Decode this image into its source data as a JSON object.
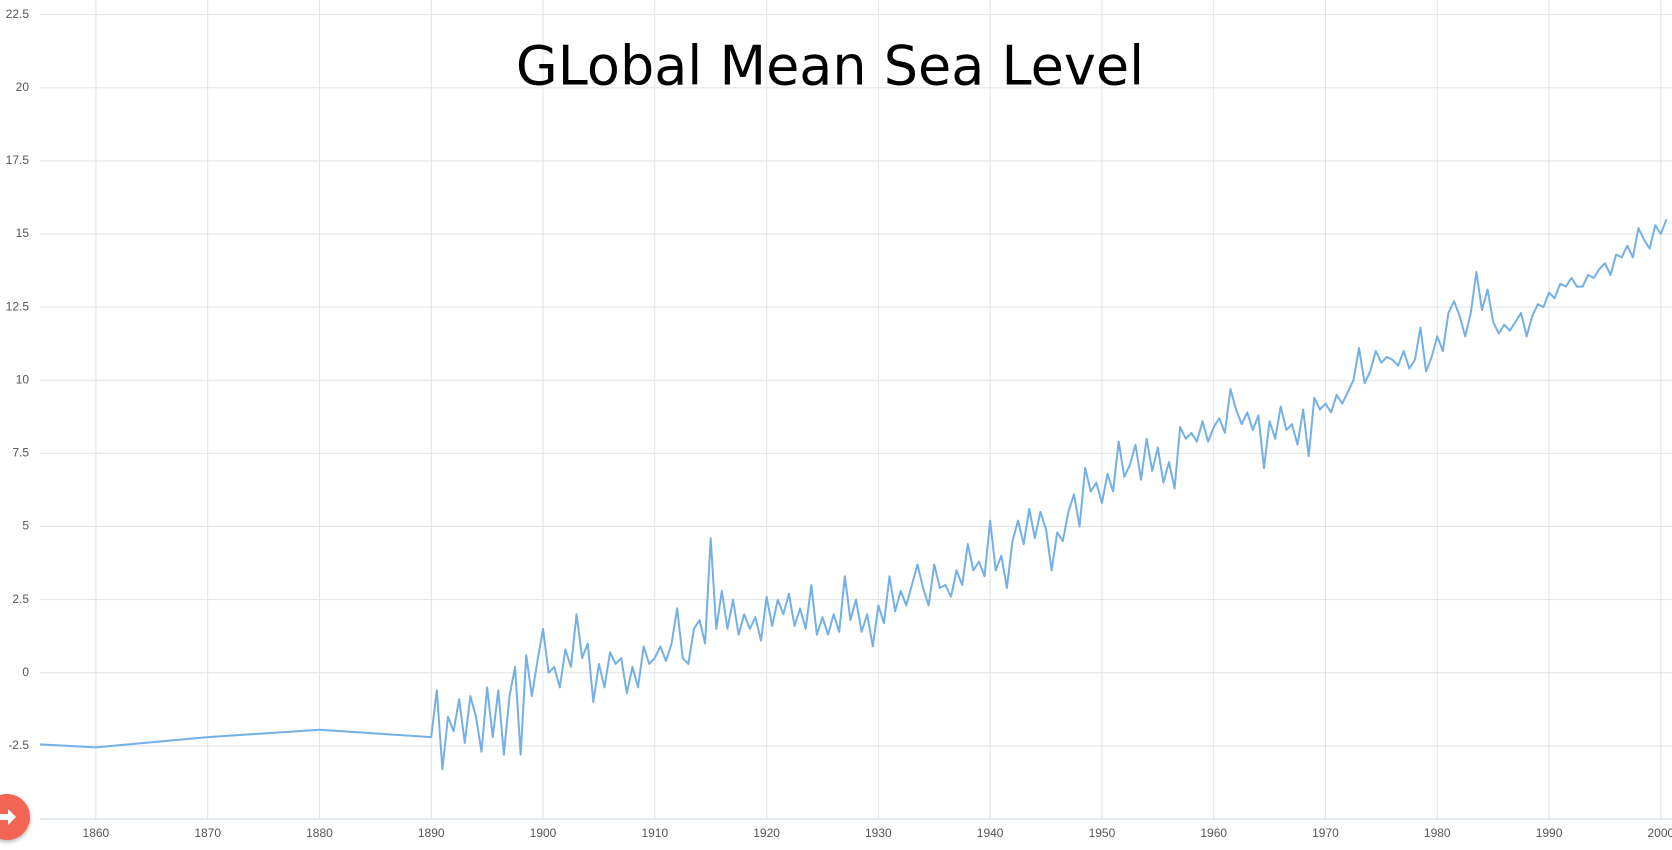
{
  "chart_data": {
    "type": "line",
    "title": "GLobal Mean Sea Level",
    "x": [
      1855,
      1860,
      1870,
      1880,
      1890,
      1890.5,
      1891,
      1891.5,
      1892,
      1892.5,
      1893,
      1893.5,
      1894,
      1894.5,
      1895,
      1895.5,
      1896,
      1896.5,
      1897,
      1897.5,
      1898,
      1898.5,
      1899,
      1899.5,
      1900,
      1900.5,
      1901,
      1901.5,
      1902,
      1902.5,
      1903,
      1903.5,
      1904,
      1904.5,
      1905,
      1905.5,
      1906,
      1906.5,
      1907,
      1907.5,
      1908,
      1908.5,
      1909,
      1909.5,
      1910,
      1910.5,
      1911,
      1911.5,
      1912,
      1912.5,
      1913,
      1913.5,
      1914,
      1914.5,
      1915,
      1915.5,
      1916,
      1916.5,
      1917,
      1917.5,
      1918,
      1918.5,
      1919,
      1919.5,
      1920,
      1920.5,
      1921,
      1921.5,
      1922,
      1922.5,
      1923,
      1923.5,
      1924,
      1924.5,
      1925,
      1925.5,
      1926,
      1926.5,
      1927,
      1927.5,
      1928,
      1928.5,
      1929,
      1929.5,
      1930,
      1930.5,
      1931,
      1931.5,
      1932,
      1932.5,
      1933,
      1933.5,
      1934,
      1934.5,
      1935,
      1935.5,
      1936,
      1936.5,
      1937,
      1937.5,
      1938,
      1938.5,
      1939,
      1939.5,
      1940,
      1940.5,
      1941,
      1941.5,
      1942,
      1942.5,
      1943,
      1943.5,
      1944,
      1944.5,
      1945,
      1945.5,
      1946,
      1946.5,
      1947,
      1947.5,
      1948,
      1948.5,
      1949,
      1949.5,
      1950,
      1950.5,
      1951,
      1951.5,
      1952,
      1952.5,
      1953,
      1953.5,
      1954,
      1954.5,
      1955,
      1955.5,
      1956,
      1956.5,
      1957,
      1957.5,
      1958,
      1958.5,
      1959,
      1959.5,
      1960,
      1960.5,
      1961,
      1961.5,
      1962,
      1962.5,
      1963,
      1963.5,
      1964,
      1964.5,
      1965,
      1965.5,
      1966,
      1966.5,
      1967,
      1967.5,
      1968,
      1968.5,
      1969,
      1969.5,
      1970,
      1970.5,
      1971,
      1971.5,
      1972,
      1972.5,
      1973,
      1973.5,
      1974,
      1974.5,
      1975,
      1975.5,
      1976,
      1976.5,
      1977,
      1977.5,
      1978,
      1978.5,
      1979,
      1979.5,
      1980,
      1980.5,
      1981,
      1981.5,
      1982,
      1982.5,
      1983,
      1983.5,
      1984,
      1984.5,
      1985,
      1985.5,
      1986,
      1986.5,
      1987,
      1987.5,
      1988,
      1988.5,
      1989,
      1989.5,
      1990,
      1990.5,
      1991,
      1991.5,
      1992,
      1992.5,
      1993,
      1993.5,
      1994,
      1994.5,
      1995,
      1995.5,
      1996,
      1996.5,
      1997,
      1997.5,
      1998,
      1998.5,
      1999,
      1999.5,
      2000,
      2000.5
    ],
    "series": [
      {
        "color": "#74b0e6",
        "values": [
          -2.45,
          -2.55,
          -2.2,
          -1.95,
          -2.2,
          -0.6,
          -3.3,
          -1.5,
          -2.0,
          -0.9,
          -2.4,
          -0.8,
          -1.5,
          -2.7,
          -0.5,
          -2.2,
          -0.6,
          -2.8,
          -0.8,
          0.2,
          -2.8,
          0.6,
          -0.8,
          0.4,
          1.5,
          0.0,
          0.2,
          -0.5,
          0.8,
          0.2,
          2.0,
          0.5,
          1.0,
          -1.0,
          0.3,
          -0.5,
          0.7,
          0.3,
          0.5,
          -0.7,
          0.2,
          -0.5,
          0.9,
          0.3,
          0.5,
          0.9,
          0.4,
          1.0,
          2.2,
          0.5,
          0.3,
          1.5,
          1.8,
          1.0,
          4.6,
          1.5,
          2.8,
          1.5,
          2.5,
          1.3,
          2.0,
          1.5,
          1.9,
          1.1,
          2.6,
          1.6,
          2.5,
          2.0,
          2.7,
          1.6,
          2.2,
          1.5,
          3.0,
          1.3,
          1.9,
          1.3,
          2.0,
          1.4,
          3.3,
          1.8,
          2.5,
          1.4,
          2.0,
          0.9,
          2.3,
          1.7,
          3.3,
          2.1,
          2.8,
          2.3,
          3.0,
          3.7,
          2.9,
          2.3,
          3.7,
          2.9,
          3.0,
          2.6,
          3.5,
          3.0,
          4.4,
          3.5,
          3.8,
          3.3,
          5.2,
          3.5,
          4.0,
          2.9,
          4.5,
          5.2,
          4.4,
          5.6,
          4.6,
          5.5,
          4.9,
          3.5,
          4.8,
          4.5,
          5.5,
          6.1,
          5.0,
          7.0,
          6.2,
          6.5,
          5.8,
          6.8,
          6.2,
          7.9,
          6.7,
          7.1,
          7.8,
          6.6,
          8.0,
          6.9,
          7.7,
          6.5,
          7.2,
          6.3,
          8.4,
          8.0,
          8.2,
          7.9,
          8.6,
          7.9,
          8.4,
          8.7,
          8.2,
          9.7,
          9.0,
          8.5,
          8.9,
          8.3,
          8.8,
          7.0,
          8.6,
          8.0,
          9.1,
          8.3,
          8.5,
          7.8,
          9.0,
          7.4,
          9.4,
          9.0,
          9.2,
          8.9,
          9.5,
          9.2,
          9.6,
          10.0,
          11.1,
          9.9,
          10.3,
          11.0,
          10.6,
          10.8,
          10.7,
          10.5,
          11.0,
          10.4,
          10.7,
          11.8,
          10.3,
          10.8,
          11.5,
          11.0,
          12.3,
          12.7,
          12.2,
          11.5,
          12.3,
          13.7,
          12.4,
          13.1,
          12.0,
          11.6,
          11.9,
          11.7,
          12.0,
          12.3,
          11.5,
          12.2,
          12.6,
          12.5,
          13.0,
          12.8,
          13.3,
          13.2,
          13.5,
          13.2,
          13.2,
          13.6,
          13.5,
          13.8,
          14.0,
          13.6,
          14.3,
          14.2,
          14.6,
          14.2,
          15.2,
          14.8,
          14.5,
          15.3,
          15.0,
          15.5
        ]
      }
    ],
    "xlim": [
      1855,
      2001
    ],
    "xticks": [
      1860,
      1870,
      1880,
      1890,
      1900,
      1910,
      1920,
      1930,
      1940,
      1950,
      1960,
      1970,
      1980,
      1990,
      2000
    ],
    "ylim": [
      -5,
      23
    ],
    "yticks": [
      -2.5,
      0,
      2.5,
      5,
      7.5,
      10,
      12.5,
      15,
      17.5,
      20,
      22.5
    ],
    "grid": true
  }
}
